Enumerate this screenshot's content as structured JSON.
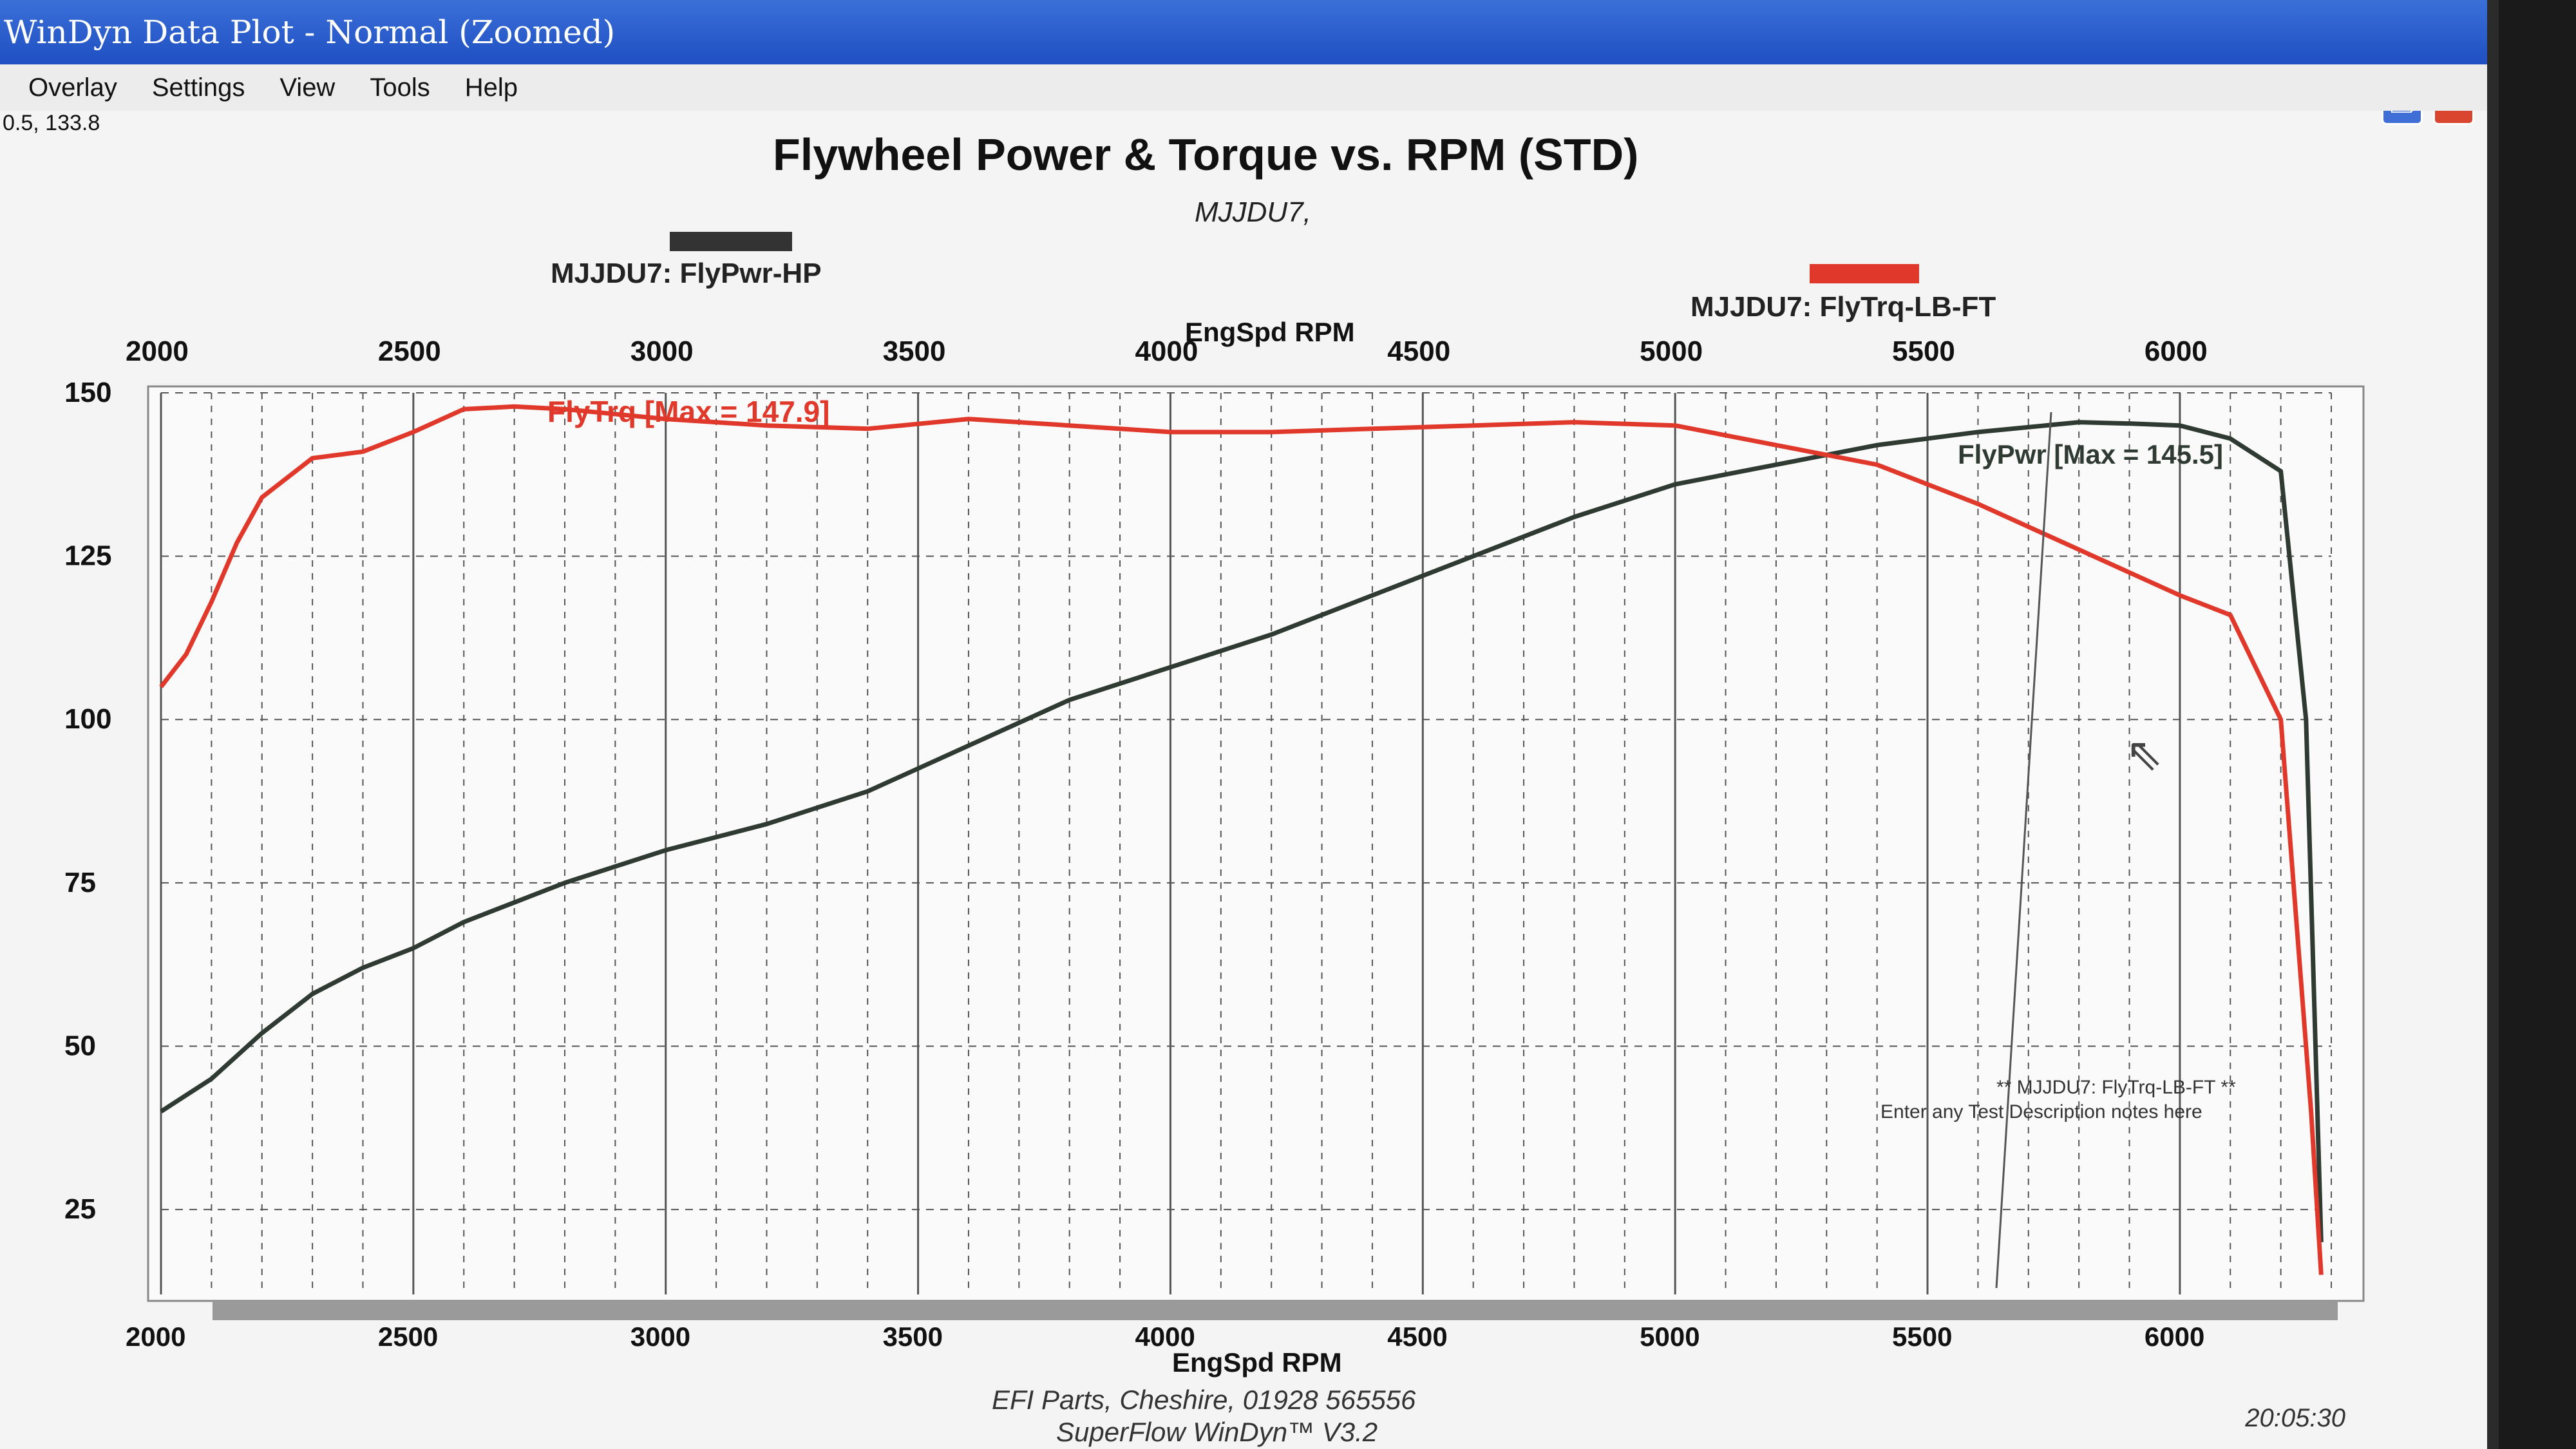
{
  "window": {
    "title": "WinDyn Data Plot - Normal   (Zoomed)"
  },
  "menu": [
    "Overlay",
    "Settings",
    "View",
    "Tools",
    "Help"
  ],
  "readout": "0.5, 133.8",
  "plot": {
    "title": "Flywheel Power & Torque vs. RPM (STD)",
    "subtitle": "MJJDU7,",
    "legend": [
      {
        "label": "MJJDU7: FlyPwr-HP",
        "color": "#333333"
      },
      {
        "label": "MJJDU7: FlyTrq-LB-FT",
        "color": "#e0382a"
      }
    ],
    "top_axis_label": "EngSpd RPM",
    "bottom_axis_label": "EngSpd RPM",
    "torque_max_label": "FlyTrq [Max = 147.9]",
    "power_max_label": "FlyPwr [Max = 145.5]",
    "note_line1": "** MJJDU7: FlyTrq-LB-FT **",
    "note_line2": "Enter any Test Description notes here"
  },
  "footer": {
    "line1": "EFI Parts, Cheshire, 01928 565556",
    "line2": "SuperFlow WinDyn™ V3.2",
    "time": "20:05:30"
  },
  "chart_data": {
    "type": "line",
    "title": "Flywheel Power & Torque vs. RPM (STD)",
    "xlabel": "EngSpd RPM",
    "ylabel": "",
    "xlim": [
      2000,
      6300
    ],
    "ylim": [
      12,
      150
    ],
    "x_ticks": [
      2000,
      2500,
      3000,
      3500,
      4000,
      4500,
      5000,
      5500,
      6000
    ],
    "y_ticks": [
      25,
      50,
      75,
      100,
      125,
      150
    ],
    "grid": true,
    "series": [
      {
        "name": "MJJDU7: FlyPwr-HP",
        "color": "#2f3a32",
        "x": [
          2000,
          2100,
          2200,
          2300,
          2400,
          2500,
          2600,
          2700,
          2800,
          3000,
          3200,
          3400,
          3600,
          3800,
          4000,
          4200,
          4400,
          4600,
          4800,
          5000,
          5200,
          5400,
          5600,
          5800,
          5900,
          6000,
          6100,
          6200,
          6250,
          6280
        ],
        "values": [
          40,
          45,
          52,
          58,
          62,
          65,
          69,
          72,
          75,
          80,
          84,
          89,
          96,
          103,
          108,
          113,
          119,
          125,
          131,
          136,
          139,
          142,
          144,
          145.5,
          145.3,
          145,
          143,
          138,
          100,
          20
        ]
      },
      {
        "name": "MJJDU7: FlyTrq-LB-FT",
        "color": "#e0382a",
        "x": [
          2000,
          2050,
          2100,
          2150,
          2200,
          2300,
          2400,
          2500,
          2600,
          2700,
          2800,
          3000,
          3200,
          3400,
          3600,
          3800,
          4000,
          4200,
          4400,
          4600,
          4800,
          5000,
          5200,
          5400,
          5600,
          5800,
          6000,
          6100,
          6200,
          6230,
          6260,
          6280
        ],
        "values": [
          105,
          110,
          118,
          127,
          134,
          140,
          141,
          144,
          147.5,
          147.9,
          147.5,
          146,
          145,
          144.5,
          146,
          145,
          144,
          144,
          144.5,
          145,
          145.5,
          145,
          142,
          139,
          133,
          126,
          119,
          116,
          100,
          70,
          40,
          15
        ]
      }
    ],
    "annotations": [
      "FlyTrq [Max = 147.9]",
      "FlyPwr [Max = 145.5]"
    ]
  }
}
